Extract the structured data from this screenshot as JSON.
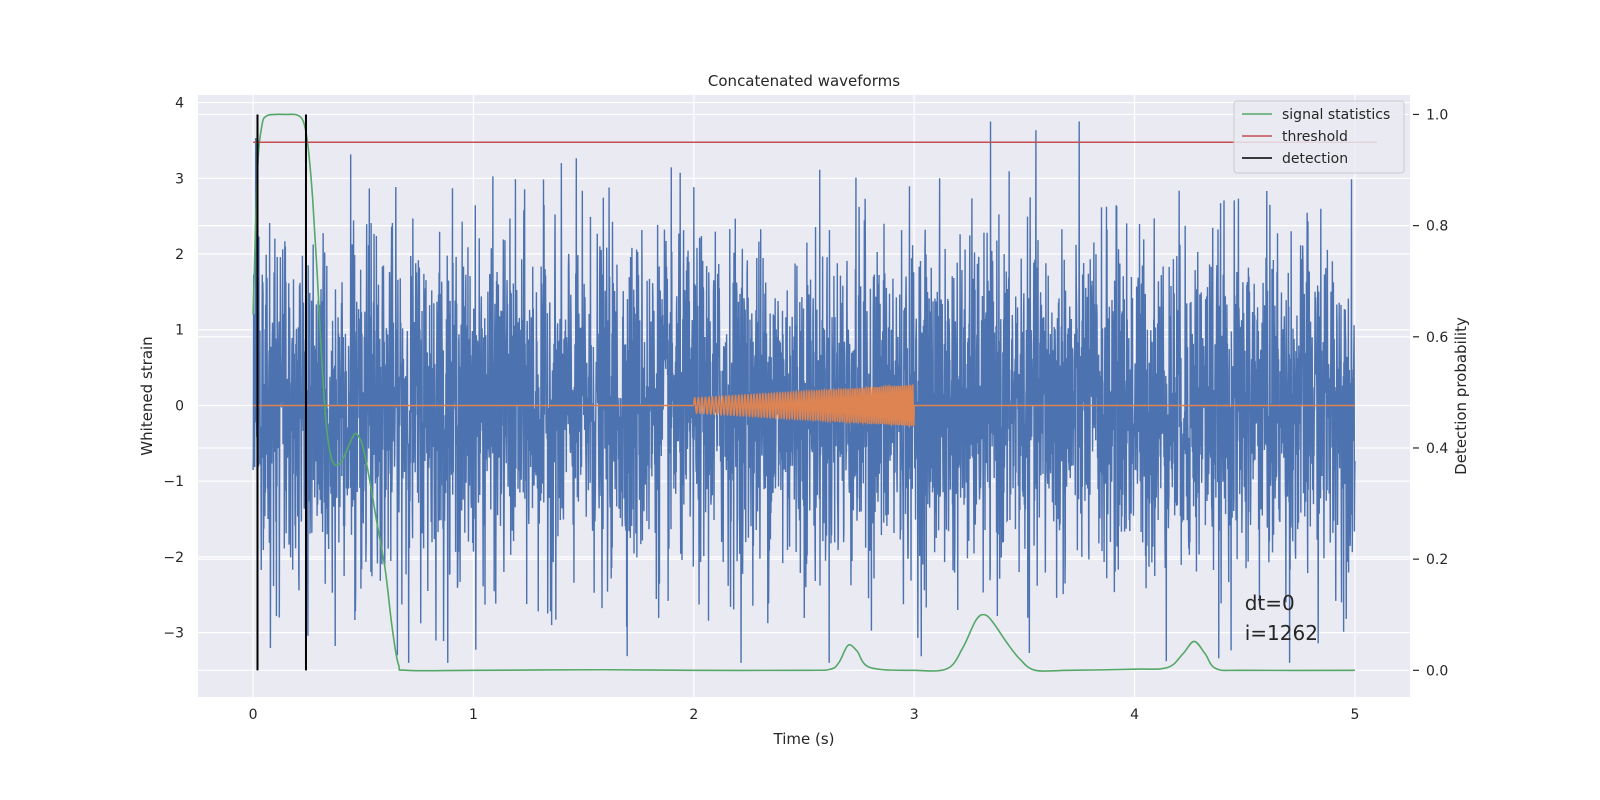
{
  "chart_data": {
    "type": "line",
    "title": "Concatenated waveforms",
    "xlabel": "Time (s)",
    "ylabel": "Whitened strain",
    "ylabel_right": "Detection probability",
    "xlim": [
      -0.25,
      5.25
    ],
    "ylim": [
      -3.85,
      4.1
    ],
    "ylim_right": [
      -0.048,
      1.035
    ],
    "x_ticks": [
      0,
      1,
      2,
      3,
      4,
      5
    ],
    "y_ticks": [
      -3,
      -2,
      -1,
      0,
      1,
      2,
      3,
      4
    ],
    "y_tick_labels": [
      "−3",
      "−2",
      "−1",
      "0",
      "1",
      "2",
      "3",
      "4"
    ],
    "y_right_ticks": [
      0.0,
      0.2,
      0.4,
      0.6,
      0.8,
      1.0
    ],
    "y_right_tick_labels": [
      "0.0",
      "0.2",
      "0.4",
      "0.6",
      "0.8",
      "1.0"
    ],
    "grid": true,
    "legend_position": "top-right",
    "series": [
      {
        "id": "strain",
        "color": "#4c72b0",
        "axis": "left",
        "noise_time_range": [
          0,
          5
        ],
        "noise_amplitude": 1.1
      },
      {
        "id": "injection",
        "color": "#dd8452",
        "axis": "left",
        "chirp_time_range": [
          2,
          3
        ],
        "chirp_amplitude_start": 0.1,
        "chirp_amplitude_end": 0.27
      },
      {
        "id": "signal-statistics",
        "name": "signal statistics",
        "color": "#55a868",
        "axis": "right",
        "x": [
          0.0,
          0.02,
          0.04,
          0.06,
          0.1,
          0.15,
          0.2,
          0.23,
          0.25,
          0.27,
          0.29,
          0.31,
          0.33,
          0.35,
          0.37,
          0.4,
          0.43,
          0.46,
          0.48,
          0.5,
          0.53,
          0.56,
          0.6,
          0.63,
          0.66,
          0.7,
          1.0,
          1.6,
          2.0,
          2.5,
          2.62,
          2.66,
          2.7,
          2.74,
          2.8,
          3.0,
          3.15,
          3.22,
          3.28,
          3.32,
          3.36,
          3.42,
          3.48,
          3.55,
          3.7,
          4.0,
          4.15,
          4.22,
          4.27,
          4.32,
          4.37,
          4.5,
          5.0
        ],
        "y": [
          0.64,
          0.9,
          0.98,
          0.997,
          1.0,
          1.0,
          0.999,
          0.985,
          0.94,
          0.85,
          0.72,
          0.57,
          0.45,
          0.39,
          0.37,
          0.375,
          0.4,
          0.425,
          0.42,
          0.4,
          0.34,
          0.27,
          0.18,
          0.08,
          0.01,
          0.0,
          0.0,
          0.001,
          0.0,
          0.0,
          0.002,
          0.015,
          0.045,
          0.035,
          0.005,
          0.0,
          0.003,
          0.04,
          0.09,
          0.1,
          0.085,
          0.05,
          0.02,
          0.0,
          0.0,
          0.002,
          0.005,
          0.03,
          0.052,
          0.03,
          0.003,
          0.0,
          0.0
        ]
      },
      {
        "id": "threshold",
        "name": "threshold",
        "color": "#c44e52",
        "axis": "right",
        "x": [
          0,
          5.1
        ],
        "y": [
          0.95,
          0.95
        ]
      },
      {
        "id": "detection",
        "name": "detection",
        "color": "#000000",
        "axis": "right",
        "x": [
          0.02,
          0.24
        ],
        "y_range": [
          0.0,
          1.0
        ]
      }
    ],
    "annotation": {
      "line1": "dt=0",
      "line2": "i=1262",
      "x": 4.5,
      "y": -2.7
    }
  }
}
